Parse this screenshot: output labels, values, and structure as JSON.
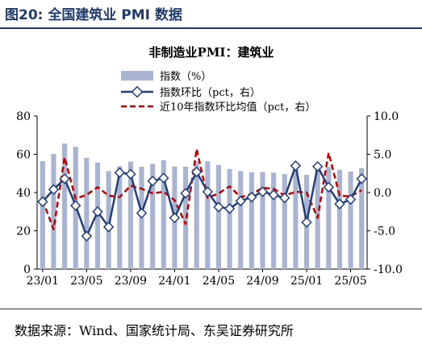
{
  "figure": {
    "label": "图20:  全国建筑业 PMI 数据",
    "source": "数据来源：Wind、国家统计局、东吴证券研究所"
  },
  "colors": {
    "title_blue": "#1f3b6e",
    "bar": "#a9b4d2",
    "line": "#233f7b",
    "avg_line": "#c00000"
  },
  "chart_data": {
    "type": "bar",
    "title": "非制造业PMI：建筑业",
    "categories": [
      "23/01",
      "23/02",
      "23/03",
      "23/04",
      "23/05",
      "23/06",
      "23/07",
      "23/08",
      "23/09",
      "23/10",
      "23/11",
      "23/12",
      "24/01",
      "24/02",
      "24/03",
      "24/04",
      "24/05",
      "24/06",
      "24/07",
      "24/08",
      "24/09",
      "24/10",
      "24/11",
      "24/12",
      "25/01",
      "25/02",
      "25/03",
      "25/04",
      "25/05",
      "25/06"
    ],
    "x_tick_labels": [
      "23/01",
      "23/05",
      "23/09",
      "24/01",
      "24/05",
      "24/09",
      "25/01",
      "25/05"
    ],
    "x_tick_index": [
      0,
      4,
      8,
      12,
      16,
      20,
      24,
      28
    ],
    "left_axis": {
      "ylim": [
        0,
        80
      ],
      "ticks": [
        0,
        20,
        40,
        60,
        80
      ]
    },
    "right_axis": {
      "ylim": [
        -10,
        10
      ],
      "ticks": [
        "-10.0",
        "-5.0",
        "0.0",
        "5.0",
        "10.0"
      ]
    },
    "legend_placement": "top",
    "series": [
      {
        "name": "指数（%）",
        "type": "bar",
        "axis": "left",
        "values": [
          56.4,
          60.2,
          65.6,
          63.9,
          58.2,
          55.7,
          51.2,
          53.8,
          56.2,
          53.5,
          55.0,
          56.9,
          53.6,
          53.5,
          56.2,
          56.3,
          54.4,
          52.3,
          51.2,
          50.6,
          50.7,
          50.4,
          49.7,
          53.2,
          49.3,
          52.7,
          53.4,
          51.9,
          51.0,
          52.8
        ]
      },
      {
        "name": "指数环比（pct，右）",
        "type": "line",
        "axis": "right",
        "values": [
          -1.2,
          0.4,
          1.8,
          -1.7,
          -5.7,
          -2.5,
          -4.5,
          2.6,
          2.4,
          -2.7,
          1.5,
          1.9,
          -3.3,
          -0.1,
          2.7,
          0.1,
          -1.9,
          -2.1,
          -1.1,
          -0.6,
          0.1,
          -0.3,
          -0.7,
          3.5,
          -3.9,
          3.4,
          0.7,
          -1.5,
          -0.9,
          1.8
        ]
      },
      {
        "name": "近10年指数环比均值（pct，右）",
        "type": "line",
        "axis": "right",
        "style": "dashed",
        "values": [
          -1.0,
          -4.8,
          4.6,
          -0.8,
          -0.3,
          0.7,
          -0.4,
          -0.6,
          0.9,
          0.5,
          -0.1,
          0.1,
          -1.0,
          -4.1,
          5.7,
          -0.7,
          -0.1,
          0.8,
          -0.6,
          -0.2,
          0.6,
          0.5,
          -0.4,
          0.1,
          0.0,
          -3.3,
          5.2,
          -0.4,
          -0.5,
          0.3
        ]
      }
    ]
  }
}
